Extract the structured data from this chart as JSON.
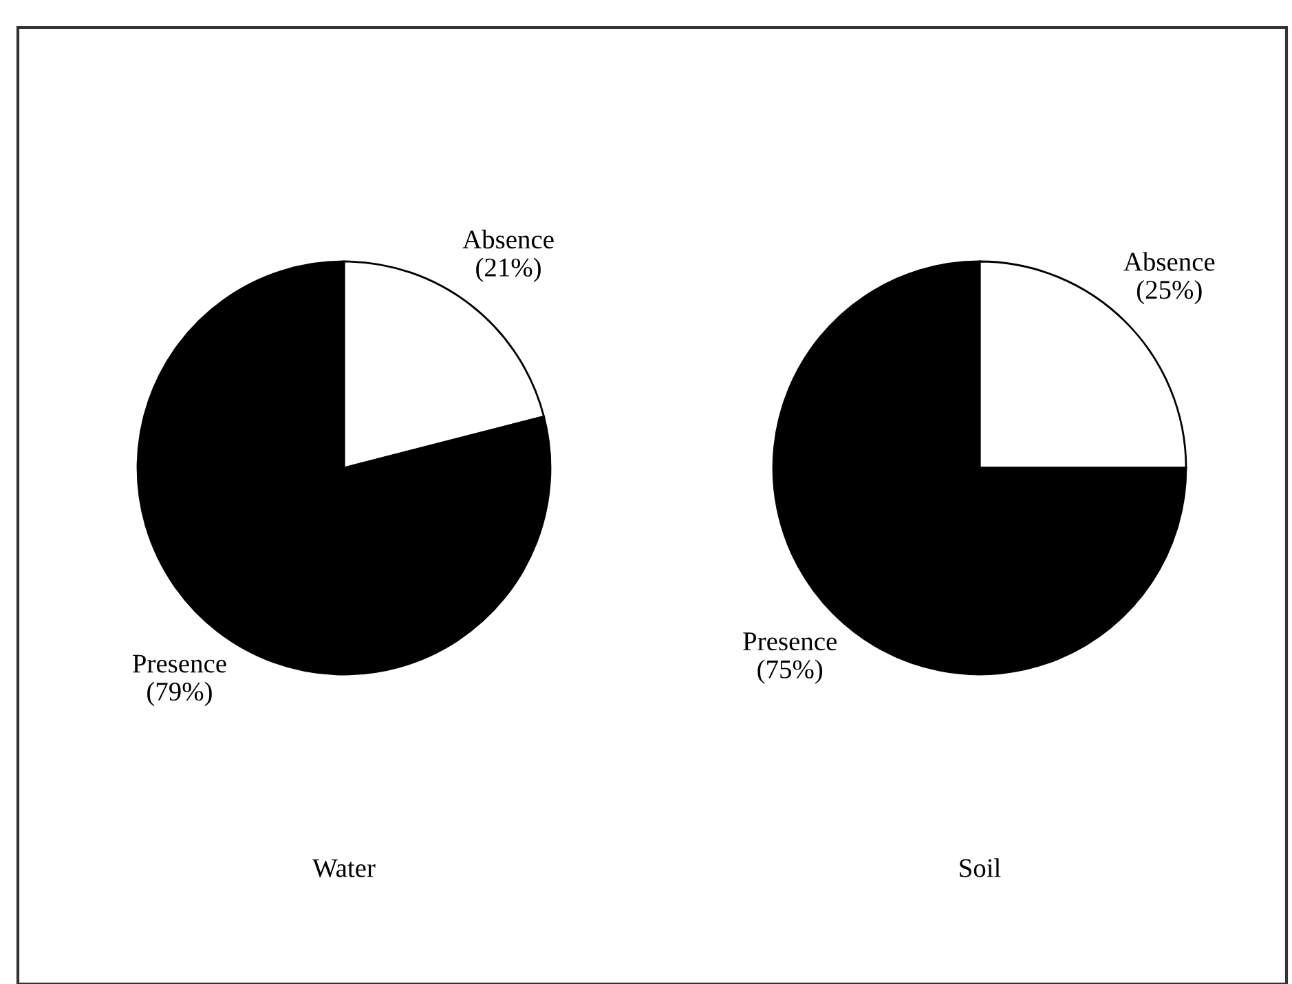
{
  "chart_data": [
    {
      "type": "pie",
      "title": "Water",
      "categories": [
        "Absence",
        "Presence"
      ],
      "values": [
        21,
        79
      ],
      "value_labels": [
        "(21%)",
        "(79%)"
      ],
      "colors": [
        "#ffffff",
        "#000000"
      ]
    },
    {
      "type": "pie",
      "title": "Soil",
      "categories": [
        "Absence",
        "Presence"
      ],
      "values": [
        25,
        75
      ],
      "value_labels": [
        "(25%)",
        "(75%)"
      ],
      "colors": [
        "#ffffff",
        "#000000"
      ]
    }
  ]
}
